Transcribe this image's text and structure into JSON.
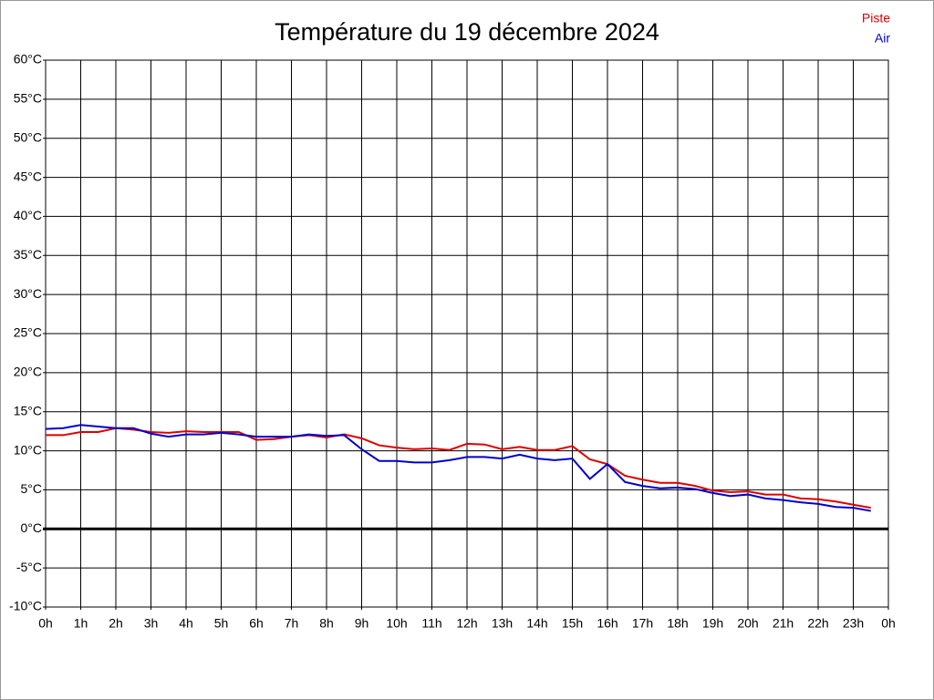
{
  "chart_data": {
    "type": "line",
    "title": "Température du 19 décembre 2024",
    "x": [
      0,
      0.5,
      1,
      1.5,
      2,
      2.5,
      3,
      3.5,
      4,
      4.5,
      5,
      5.5,
      6,
      6.5,
      7,
      7.5,
      8,
      8.5,
      9,
      9.5,
      10,
      10.5,
      11,
      11.5,
      12,
      12.5,
      13,
      13.5,
      14,
      14.5,
      15,
      15.5,
      16,
      16.5,
      17,
      17.5,
      18,
      18.5,
      19,
      19.5,
      20,
      20.5,
      21,
      21.5,
      22,
      22.5,
      23,
      23.5
    ],
    "series": [
      {
        "name": "Piste",
        "color": "#dd0000",
        "values": [
          12,
          12,
          12.4,
          12.4,
          12.9,
          12.7,
          12.4,
          12.3,
          12.5,
          12.4,
          12.4,
          12.4,
          11.4,
          11.5,
          11.8,
          12,
          11.7,
          12.1,
          11.6,
          10.7,
          10.4,
          10.2,
          10.3,
          10.1,
          10.9,
          10.8,
          10.2,
          10.5,
          10.1,
          10.1,
          10.6,
          8.9,
          8.3,
          6.8,
          6.3,
          5.9,
          5.9,
          5.5,
          4.9,
          4.7,
          4.8,
          4.4,
          4.4,
          3.9,
          3.8,
          3.5,
          3.1,
          2.7
        ]
      },
      {
        "name": "Air",
        "color": "#0000cc",
        "values": [
          12.8,
          12.9,
          13.3,
          13.1,
          12.9,
          12.9,
          12.2,
          11.8,
          12.1,
          12.1,
          12.3,
          12.1,
          11.8,
          11.8,
          11.8,
          12.1,
          11.9,
          12,
          10.2,
          8.7,
          8.7,
          8.5,
          8.5,
          8.8,
          9.2,
          9.2,
          9,
          9.5,
          9,
          8.8,
          9,
          6.4,
          8.3,
          6,
          5.5,
          5.2,
          5.3,
          5.1,
          4.6,
          4.2,
          4.4,
          3.9,
          3.7,
          3.4,
          3.2,
          2.8,
          2.7,
          2.3
        ]
      }
    ],
    "xlim": [
      0,
      24
    ],
    "xticks": [
      {
        "value": 0,
        "label": "0h"
      },
      {
        "value": 1,
        "label": "1h"
      },
      {
        "value": 2,
        "label": "2h"
      },
      {
        "value": 3,
        "label": "3h"
      },
      {
        "value": 4,
        "label": "4h"
      },
      {
        "value": 5,
        "label": "5h"
      },
      {
        "value": 6,
        "label": "6h"
      },
      {
        "value": 7,
        "label": "7h"
      },
      {
        "value": 8,
        "label": "8h"
      },
      {
        "value": 9,
        "label": "9h"
      },
      {
        "value": 10,
        "label": "10h"
      },
      {
        "value": 11,
        "label": "11h"
      },
      {
        "value": 12,
        "label": "12h"
      },
      {
        "value": 13,
        "label": "13h"
      },
      {
        "value": 14,
        "label": "14h"
      },
      {
        "value": 15,
        "label": "15h"
      },
      {
        "value": 16,
        "label": "16h"
      },
      {
        "value": 17,
        "label": "17h"
      },
      {
        "value": 18,
        "label": "18h"
      },
      {
        "value": 19,
        "label": "19h"
      },
      {
        "value": 20,
        "label": "20h"
      },
      {
        "value": 21,
        "label": "21h"
      },
      {
        "value": 22,
        "label": "22h"
      },
      {
        "value": 23,
        "label": "23h"
      },
      {
        "value": 24,
        "label": "0h"
      }
    ],
    "ylim": [
      -10,
      60
    ],
    "yticks": [
      {
        "value": -10,
        "label": "-10°C"
      },
      {
        "value": -5,
        "label": "-5°C"
      },
      {
        "value": 0,
        "label": "0°C"
      },
      {
        "value": 5,
        "label": "5°C"
      },
      {
        "value": 10,
        "label": "10°C"
      },
      {
        "value": 15,
        "label": "15°C"
      },
      {
        "value": 20,
        "label": "20°C"
      },
      {
        "value": 25,
        "label": "25°C"
      },
      {
        "value": 30,
        "label": "30°C"
      },
      {
        "value": 35,
        "label": "35°C"
      },
      {
        "value": 40,
        "label": "40°C"
      },
      {
        "value": 45,
        "label": "45°C"
      },
      {
        "value": 50,
        "label": "50°C"
      },
      {
        "value": 55,
        "label": "55°C"
      },
      {
        "value": 60,
        "label": "60°C"
      }
    ],
    "grid": true,
    "legend": "top-right"
  }
}
